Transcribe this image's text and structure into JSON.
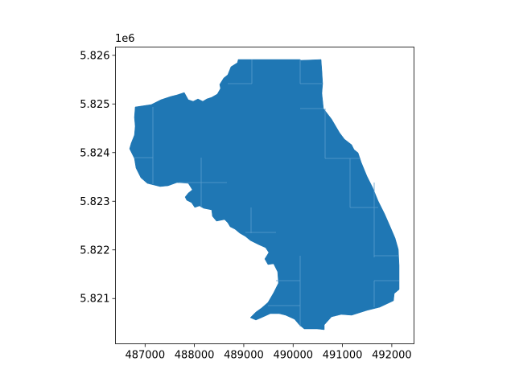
{
  "chart_data": {
    "type": "map",
    "x_offset_label": "",
    "y_offset_label": "1e6",
    "xlim": [
      486400,
      492450
    ],
    "ylim": [
      5.82007,
      5.82617
    ],
    "x_ticks": [
      {
        "value": 487000,
        "label": "487000"
      },
      {
        "value": 488000,
        "label": "488000"
      },
      {
        "value": 489000,
        "label": "489000"
      },
      {
        "value": 490000,
        "label": "490000"
      },
      {
        "value": 491000,
        "label": "491000"
      },
      {
        "value": 492000,
        "label": "492000"
      }
    ],
    "y_ticks": [
      {
        "value": 5.821,
        "label": "5.821"
      },
      {
        "value": 5.822,
        "label": "5.822"
      },
      {
        "value": 5.823,
        "label": "5.823"
      },
      {
        "value": 5.824,
        "label": "5.824"
      },
      {
        "value": 5.825,
        "label": "5.825"
      },
      {
        "value": 5.826,
        "label": "5.826"
      }
    ],
    "fill_color": "#1f77b4",
    "edge_color": "#ffffff",
    "grid": false
  }
}
